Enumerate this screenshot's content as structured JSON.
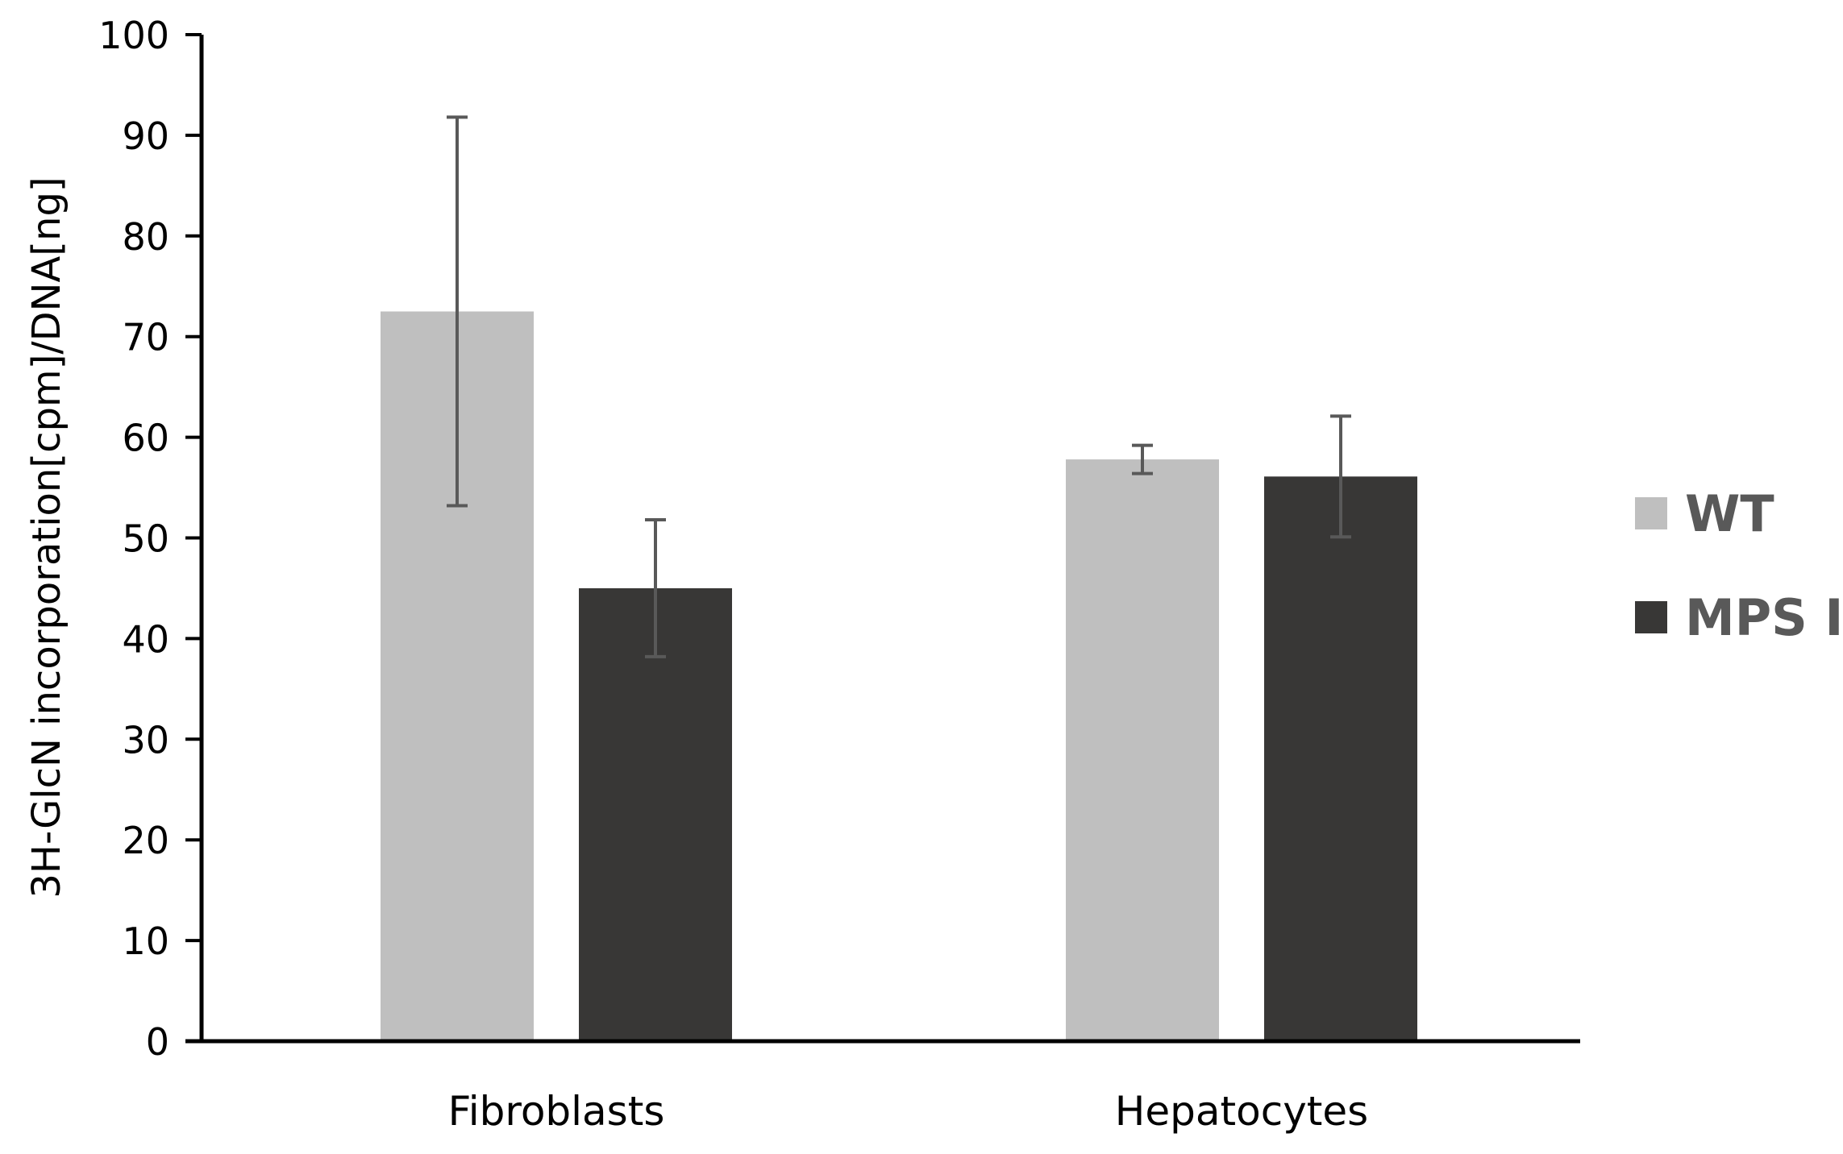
{
  "chart_data": {
    "type": "bar",
    "title": "",
    "xlabel": "",
    "ylabel": "3H-GlcN incorporation[cpm]/DNA[ng]",
    "categories": [
      "Fibroblasts",
      "Hepatocytes"
    ],
    "series": [
      {
        "name": "WT",
        "values": [
          72.5,
          57.8
        ],
        "errors": [
          19.3,
          1.4
        ],
        "color": "#bfbfbf"
      },
      {
        "name": "MPS I",
        "values": [
          45.0,
          56.1
        ],
        "errors": [
          6.8,
          6.0
        ],
        "color": "#383736"
      }
    ],
    "ylim": [
      0,
      100
    ],
    "yticks": [
      0,
      10,
      20,
      30,
      40,
      50,
      60,
      70,
      80,
      90,
      100
    ],
    "grid": false,
    "legend": "right"
  }
}
